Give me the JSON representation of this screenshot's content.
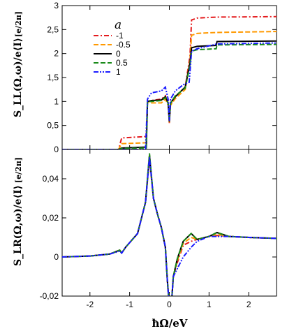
{
  "colors": {
    "-1": "#e41a1c",
    "-0.5": "#ff9900",
    "0": "#000000",
    "0.5": "#1a8a1a",
    "1": "#1a1aff"
  },
  "labels": {
    "top_ylabel": "S_LL(Ω,ω)/e⟨I⟩",
    "bottom_ylabel": "S_LR(Ω,ω)/e⟨I⟩",
    "unit": "[e/2π]",
    "xlabel": "ħΩ/eV",
    "legend_title": "a"
  },
  "chart_data": [
    {
      "type": "line",
      "panel": "top",
      "ylabel": "S_LL(Ω,ω)/e⟨I⟩ [e/2π]",
      "xlim": [
        -2.7,
        2.7
      ],
      "ylim": [
        0,
        3
      ],
      "yticks": [
        "0",
        "0,5",
        "1",
        "1,5",
        "2",
        "2,5",
        "3"
      ],
      "ytick_values": [
        0,
        0.5,
        1,
        1.5,
        2,
        2.5,
        3
      ],
      "legend": {
        "title": "a",
        "placement": "top-left",
        "entries": [
          "-1",
          "-0.5",
          "0",
          "0.5",
          "1"
        ]
      },
      "series": [
        {
          "name": "-1",
          "style": "dash-dot",
          "color": "#e41a1c",
          "x": [
            -2.7,
            -1.28,
            -1.2,
            -0.58,
            -0.55,
            -0.45,
            -0.2,
            -0.1,
            -0.03,
            0.0,
            0.03,
            0.15,
            0.4,
            0.52,
            0.56,
            0.7,
            1.2,
            2.7
          ],
          "y": [
            0.0,
            0.0,
            0.24,
            0.27,
            1.0,
            1.02,
            1.05,
            1.12,
            0.95,
            0.55,
            0.95,
            1.1,
            1.3,
            1.95,
            2.7,
            2.74,
            2.76,
            2.77
          ]
        },
        {
          "name": "-0.5",
          "style": "dash",
          "color": "#ff9900",
          "x": [
            -2.7,
            -1.28,
            -1.2,
            -0.58,
            -0.55,
            -0.45,
            -0.2,
            -0.1,
            -0.03,
            0.0,
            0.03,
            0.15,
            0.4,
            0.52,
            0.56,
            0.7,
            1.2,
            2.7
          ],
          "y": [
            0.0,
            0.0,
            0.12,
            0.14,
            1.0,
            0.97,
            0.97,
            1.05,
            0.92,
            0.55,
            0.92,
            1.06,
            1.25,
            1.85,
            2.38,
            2.42,
            2.44,
            2.46
          ]
        },
        {
          "name": "0",
          "style": "solid",
          "color": "#000000",
          "x": [
            -2.7,
            -1.28,
            -1.2,
            -0.58,
            -0.55,
            -0.45,
            -0.2,
            -0.1,
            -0.03,
            0.0,
            0.03,
            0.15,
            0.4,
            0.52,
            0.56,
            0.7,
            1.18,
            1.2,
            2.7
          ],
          "y": [
            0.0,
            0.0,
            0.03,
            0.05,
            1.0,
            1.02,
            1.03,
            1.1,
            0.97,
            0.58,
            0.97,
            1.1,
            1.3,
            1.8,
            2.12,
            2.15,
            2.17,
            2.25,
            2.26
          ]
        },
        {
          "name": "0.5",
          "style": "dash",
          "color": "#1a8a1a",
          "x": [
            -2.7,
            -1.28,
            -1.2,
            -0.58,
            -0.55,
            -0.45,
            -0.2,
            -0.1,
            -0.03,
            0.0,
            0.03,
            0.15,
            0.4,
            0.52,
            0.56,
            0.7,
            1.18,
            1.2,
            2.7
          ],
          "y": [
            0.0,
            0.0,
            0.02,
            0.03,
            1.0,
            1.0,
            1.02,
            1.08,
            0.96,
            0.6,
            0.96,
            1.12,
            1.28,
            1.75,
            2.05,
            2.08,
            2.1,
            2.18,
            2.19
          ]
        },
        {
          "name": "1",
          "style": "dash-dot-dot",
          "color": "#1a1aff",
          "x": [
            -2.7,
            -0.6,
            -0.55,
            -0.45,
            -0.2,
            -0.1,
            -0.03,
            0.0,
            0.03,
            0.15,
            0.35,
            0.5,
            0.56,
            0.7,
            1.2,
            2.7
          ],
          "y": [
            0.0,
            0.0,
            1.05,
            1.18,
            1.22,
            1.3,
            1.05,
            0.6,
            1.05,
            1.22,
            1.35,
            1.4,
            2.05,
            2.1,
            2.2,
            2.22
          ]
        }
      ]
    },
    {
      "type": "line",
      "panel": "bottom",
      "ylabel": "S_LR(Ω,ω)/e⟨I⟩ [e/2π]",
      "xlabel": "ħΩ/eV",
      "xlim": [
        -2.7,
        2.7
      ],
      "ylim": [
        -0.02,
        0.055
      ],
      "xticks": [
        "-2",
        "-1",
        "0",
        "1",
        "2"
      ],
      "xtick_values": [
        -2,
        -1,
        0,
        1,
        2
      ],
      "yticks": [
        "-0,02",
        "0",
        "0,02",
        "0,04"
      ],
      "ytick_values": [
        -0.02,
        0,
        0.02,
        0.04
      ],
      "series": [
        {
          "name": "-1",
          "style": "dash-dot",
          "color": "#e41a1c",
          "x": [
            -2.7,
            -2.0,
            -1.5,
            -1.25,
            -1.2,
            -1.1,
            -0.8,
            -0.6,
            -0.5,
            -0.4,
            -0.3,
            -0.2,
            -0.1,
            -0.05,
            0.0,
            0.05,
            0.1,
            0.2,
            0.35,
            0.55,
            0.7,
            1.0,
            1.2,
            1.5,
            2.0,
            2.7
          ],
          "y": [
            0.0,
            0.0005,
            0.0015,
            0.0035,
            0.002,
            0.005,
            0.012,
            0.028,
            0.05,
            0.03,
            0.022,
            0.015,
            0.005,
            -0.012,
            -0.025,
            -0.025,
            -0.01,
            -0.003,
            0.006,
            0.008,
            0.009,
            0.0105,
            0.011,
            0.0105,
            0.01,
            0.0095
          ]
        },
        {
          "name": "-0.5",
          "style": "dash",
          "color": "#ff9900",
          "x": [
            -2.7,
            -2.0,
            -1.5,
            -1.25,
            -1.2,
            -1.1,
            -0.8,
            -0.6,
            -0.5,
            -0.4,
            -0.3,
            -0.2,
            -0.1,
            -0.05,
            0.0,
            0.05,
            0.1,
            0.2,
            0.35,
            0.55,
            0.7,
            1.0,
            1.2,
            1.5,
            2.0,
            2.7
          ],
          "y": [
            0.0,
            0.0005,
            0.0015,
            0.0035,
            0.002,
            0.005,
            0.012,
            0.028,
            0.051,
            0.03,
            0.022,
            0.015,
            0.005,
            -0.012,
            -0.025,
            -0.025,
            -0.01,
            -0.002,
            0.007,
            0.01,
            0.009,
            0.0105,
            0.0115,
            0.0105,
            0.01,
            0.0095
          ]
        },
        {
          "name": "0",
          "style": "solid",
          "color": "#000000",
          "x": [
            -2.7,
            -2.0,
            -1.5,
            -1.25,
            -1.2,
            -1.1,
            -0.8,
            -0.6,
            -0.5,
            -0.4,
            -0.3,
            -0.2,
            -0.1,
            -0.05,
            0.0,
            0.05,
            0.1,
            0.2,
            0.35,
            0.55,
            0.7,
            1.0,
            1.2,
            1.5,
            2.0,
            2.7
          ],
          "y": [
            0.0,
            0.0005,
            0.0015,
            0.0035,
            0.002,
            0.005,
            0.012,
            0.028,
            0.052,
            0.03,
            0.022,
            0.015,
            0.005,
            -0.012,
            -0.025,
            -0.025,
            -0.01,
            -0.001,
            0.008,
            0.012,
            0.009,
            0.0105,
            0.0125,
            0.0105,
            0.01,
            0.0095
          ]
        },
        {
          "name": "0.5",
          "style": "dash",
          "color": "#1a8a1a",
          "x": [
            -2.7,
            -2.0,
            -1.5,
            -1.25,
            -1.2,
            -1.1,
            -0.8,
            -0.6,
            -0.5,
            -0.4,
            -0.3,
            -0.2,
            -0.1,
            -0.05,
            0.0,
            0.05,
            0.1,
            0.2,
            0.35,
            0.55,
            0.7,
            1.0,
            1.2,
            1.5,
            2.0,
            2.7
          ],
          "y": [
            0.0,
            0.0005,
            0.0015,
            0.0035,
            0.002,
            0.005,
            0.012,
            0.028,
            0.053,
            0.03,
            0.022,
            0.015,
            0.005,
            -0.012,
            -0.025,
            -0.025,
            -0.01,
            -0.001,
            0.008,
            0.012,
            0.009,
            0.0105,
            0.0125,
            0.0105,
            0.01,
            0.0095
          ]
        },
        {
          "name": "1",
          "style": "dash-dot-dot",
          "color": "#1a1aff",
          "x": [
            -2.7,
            -2.0,
            -1.5,
            -1.25,
            -1.2,
            -1.1,
            -0.8,
            -0.6,
            -0.5,
            -0.4,
            -0.3,
            -0.2,
            -0.1,
            -0.05,
            0.0,
            0.05,
            0.1,
            0.2,
            0.35,
            0.55,
            0.7,
            1.0,
            1.2,
            1.5,
            2.0,
            2.7
          ],
          "y": [
            0.0,
            0.0005,
            0.0015,
            0.003,
            0.002,
            0.005,
            0.012,
            0.028,
            0.051,
            0.03,
            0.022,
            0.015,
            0.005,
            -0.012,
            -0.025,
            -0.025,
            -0.01,
            -0.006,
            0.0,
            0.005,
            0.008,
            0.0105,
            0.0105,
            0.0105,
            0.01,
            0.0095
          ]
        }
      ]
    }
  ]
}
